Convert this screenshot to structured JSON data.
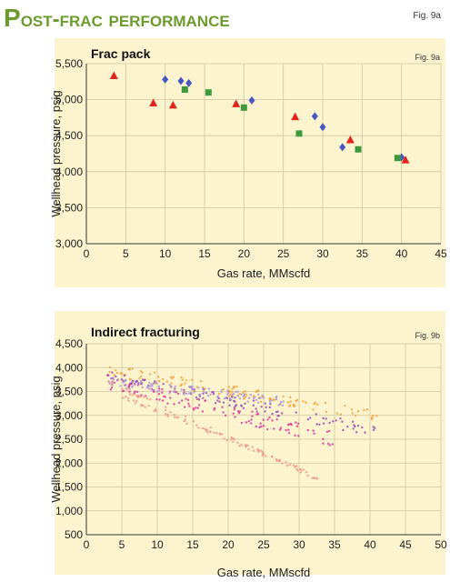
{
  "figure": {
    "title_first": "P",
    "title_rest": "ost-frac performance",
    "label": "Fig. 9a"
  },
  "colors": {
    "panel_bg": "#fbf4cf",
    "title_green": "#6d9a2e",
    "red": "#e3231d",
    "blue": "#4a55c4",
    "green": "#3f9a3f",
    "orange": "#f1a13a",
    "purple": "#9a4bb0",
    "magenta": "#d6389a",
    "lavender": "#a99ad6",
    "salmon": "#ee9a86"
  },
  "chart_data": [
    {
      "type": "scatter",
      "title": "Frac pack",
      "fig_label": "Fig. 9a",
      "xlabel": "Gas rate, MMscfd",
      "ylabel": "Wellhead pressure, psig",
      "xlim": [
        0,
        45
      ],
      "ylim": [
        3000,
        5500
      ],
      "xticks": [
        0,
        5,
        10,
        15,
        20,
        25,
        30,
        35,
        40,
        45
      ],
      "yticks": [
        "3,000",
        "3,500",
        "4,000",
        "4,500",
        "5,000",
        "5,500"
      ],
      "ytick_values": [
        3000,
        3500,
        4000,
        4500,
        5000,
        5500
      ],
      "grid": true,
      "series": [
        {
          "marker": "triangle",
          "color": "#e3231d",
          "points": [
            [
              3.5,
              5330
            ],
            [
              8.5,
              4950
            ],
            [
              11,
              4920
            ],
            [
              19,
              4940
            ],
            [
              26.5,
              4760
            ],
            [
              33.5,
              4440
            ],
            [
              40.5,
              4160
            ]
          ]
        },
        {
          "marker": "diamond",
          "color": "#4a55c4",
          "points": [
            [
              10,
              5280
            ],
            [
              12,
              5260
            ],
            [
              13,
              5230
            ],
            [
              21,
              4990
            ],
            [
              29,
              4770
            ],
            [
              30,
              4620
            ],
            [
              32.5,
              4340
            ],
            [
              40,
              4200
            ]
          ]
        },
        {
          "marker": "square",
          "color": "#3f9a3f",
          "points": [
            [
              12.5,
              5140
            ],
            [
              15.5,
              5100
            ],
            [
              20,
              4890
            ],
            [
              27,
              4530
            ],
            [
              34.5,
              4310
            ],
            [
              39.5,
              4190
            ]
          ]
        }
      ]
    },
    {
      "type": "scatter",
      "title": "Indirect fracturing",
      "fig_label": "Fig. 9b",
      "xlabel": "Gas rate, MMscfd",
      "ylabel": "Wellhead pressure, psig",
      "xlim": [
        0,
        50
      ],
      "ylim": [
        500,
        4500
      ],
      "xticks": [
        0,
        5,
        10,
        15,
        20,
        25,
        30,
        35,
        40,
        45,
        50
      ],
      "yticks": [
        "500",
        "1,000",
        "1,500",
        "2,000",
        "2,500",
        "3,000",
        "3,500",
        "4,000",
        "4,500"
      ],
      "ytick_values": [
        500,
        1000,
        1500,
        2000,
        2500,
        3000,
        3500,
        4000,
        4500
      ],
      "grid": true,
      "series": [
        {
          "color": "#f1a13a",
          "x": [
            3,
            42
          ],
          "y": [
            3950,
            2950
          ],
          "spread": 120
        },
        {
          "color": "#9a4bb0",
          "x": [
            3,
            42
          ],
          "y": [
            3850,
            2620
          ],
          "spread": 120
        },
        {
          "color": "#d6389a",
          "x": [
            3,
            35
          ],
          "y": [
            3700,
            2500
          ],
          "spread": 150
        },
        {
          "color": "#a99ad6",
          "x": [
            3,
            28
          ],
          "y": [
            3700,
            3300
          ],
          "spread": 100
        },
        {
          "color": "#ee9a86",
          "x": [
            3,
            33
          ],
          "y": [
            3700,
            1650
          ],
          "spread": 50
        },
        {
          "color": "#ee9a86",
          "x": [
            5,
            30
          ],
          "y": [
            3400,
            1900
          ],
          "spread": 40
        }
      ]
    }
  ]
}
